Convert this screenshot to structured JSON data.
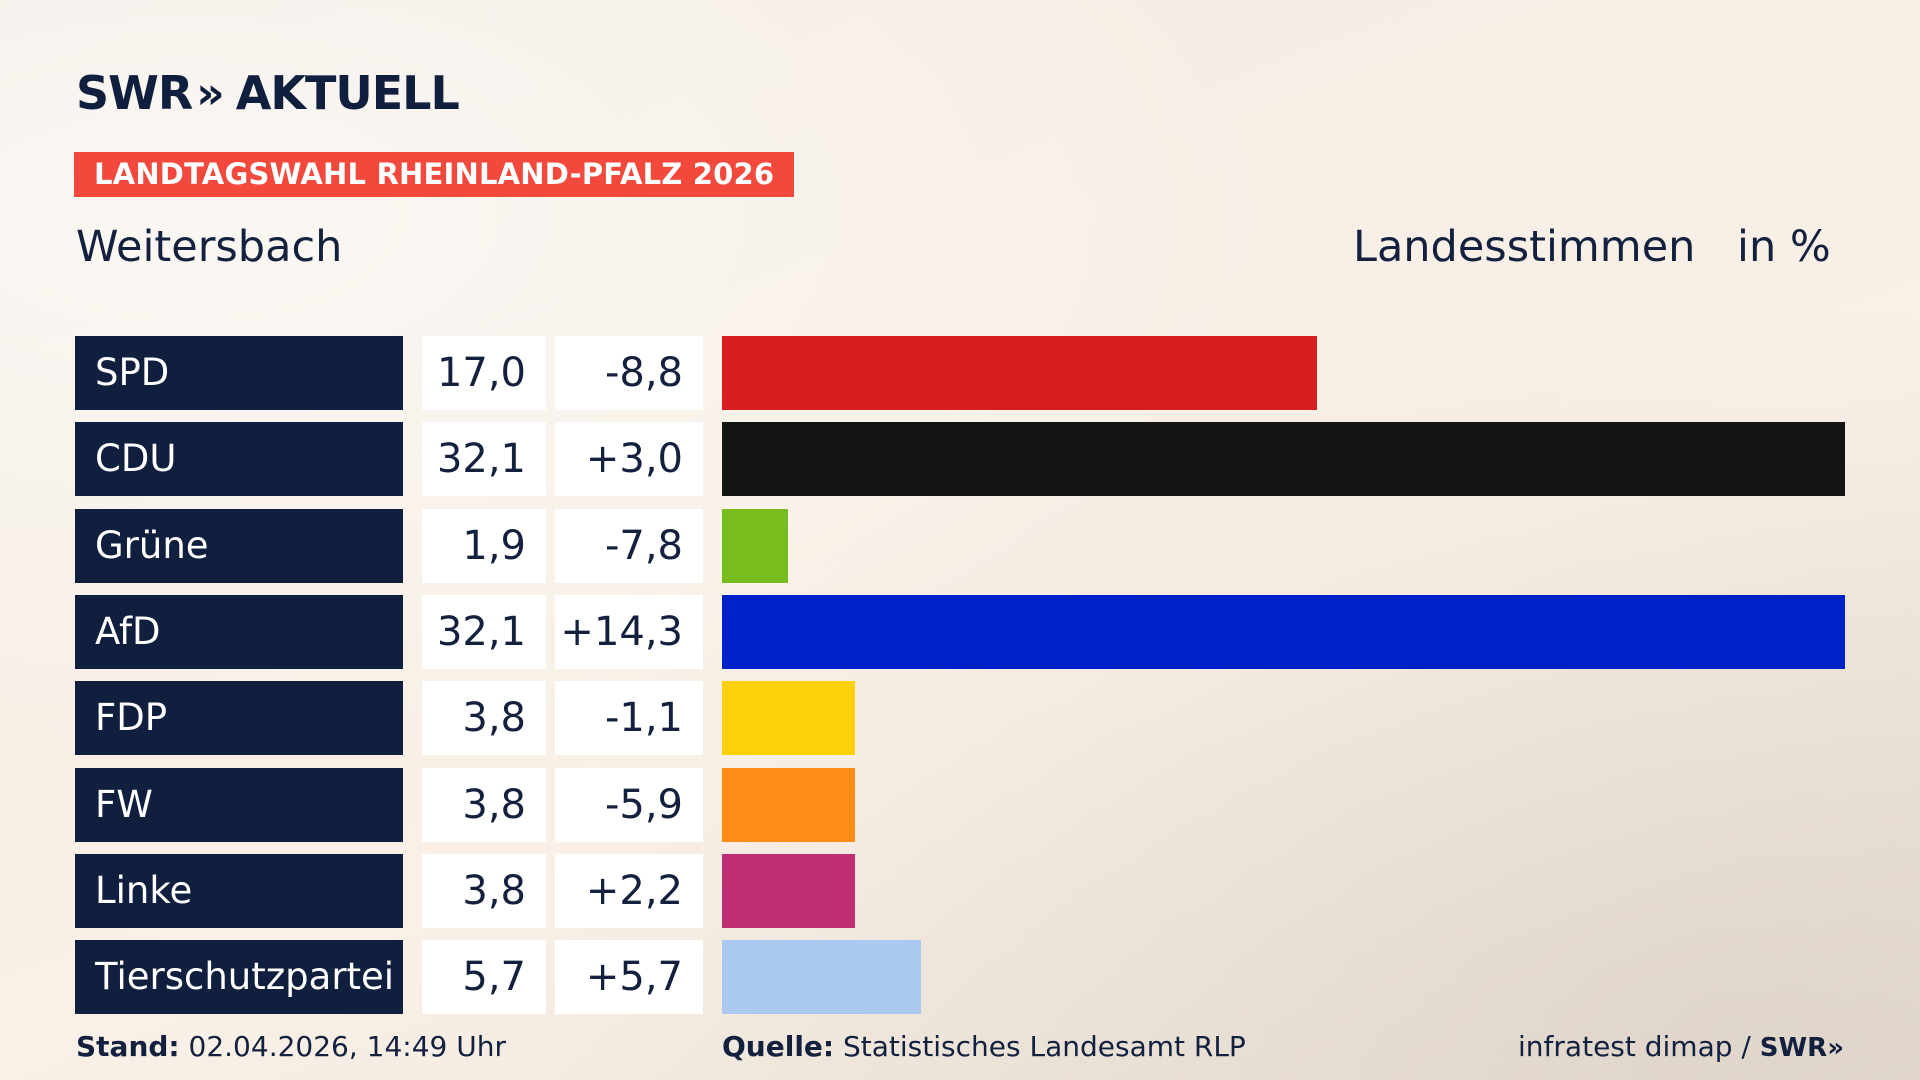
{
  "header": {
    "logo_text": "SWR",
    "logo_chevrons": "»",
    "logo_suffix": "AKTUELL",
    "badge": "LANDTAGSWAHL RHEINLAND-PFALZ 2026",
    "region": "Weitersbach",
    "unit_label": "Landesstimmen",
    "unit": "in %"
  },
  "colors": {
    "navy": "#0f1f3d",
    "badge": "#f2493c"
  },
  "chart_data": {
    "type": "bar",
    "orientation": "horizontal",
    "categories": [
      "SPD",
      "CDU",
      "Grüne",
      "AfD",
      "FDP",
      "FW",
      "Linke",
      "Tierschutzpartei"
    ],
    "values": [
      17.0,
      32.1,
      1.9,
      32.1,
      3.8,
      3.8,
      3.8,
      5.7
    ],
    "value_labels": [
      "17,0",
      "32,1",
      "1,9",
      "32,1",
      "3,8",
      "3,8",
      "3,8",
      "5,7"
    ],
    "diff_labels": [
      "-8,8",
      "+3,0",
      "-7,8",
      "+14,3",
      "-1,1",
      "-5,9",
      "+2,2",
      "+5,7"
    ],
    "diffs": [
      -8.8,
      3.0,
      -7.8,
      14.3,
      -1.1,
      -5.9,
      2.2,
      5.7
    ],
    "bar_colors": [
      "#d81f20",
      "#141414",
      "#78bd1e",
      "#0021c8",
      "#fed00a",
      "#fe8c15",
      "#bd2f72",
      "#abc8ef"
    ],
    "xlim": [
      0,
      32.1
    ],
    "title": "",
    "xlabel": "",
    "ylabel": ""
  },
  "footer": {
    "stand_label": "Stand:",
    "stand_value": "02.04.2026, 14:49 Uhr",
    "source_label": "Quelle:",
    "source_value": "Statistisches Landesamt RLP",
    "credit": "infratest dimap /",
    "credit_logo": "SWR",
    "credit_chevrons": "»"
  }
}
